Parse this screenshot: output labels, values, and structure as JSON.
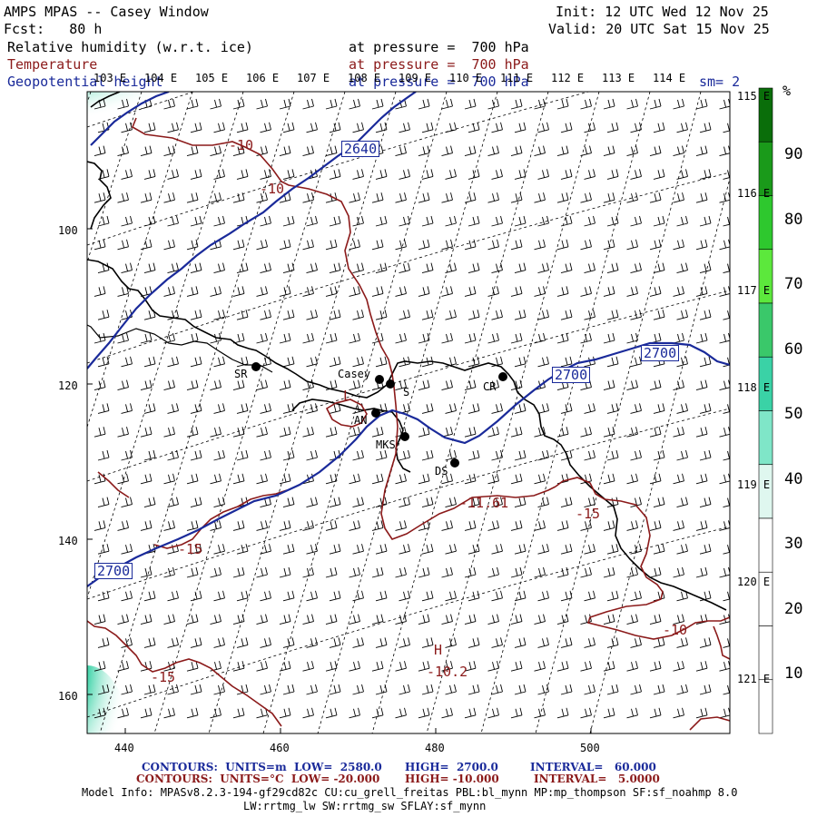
{
  "header": {
    "title": "AMPS MPAS -- Casey Window",
    "fcst": "Fcst:   80 h",
    "init": "Init: 12 UTC Wed 12 Nov 25",
    "valid": "Valid: 20 UTC Sat 15 Nov 25",
    "var1": "Relative humidity (w.r.t. ice)",
    "var1_level": "at pressure =  700 hPa",
    "var2": "Temperature",
    "var2_level": "at pressure =  700 hPa",
    "var3": "Geopotential height",
    "var3_level": "at pressure =  700 hPa",
    "smooth": "sm= 2"
  },
  "top_axis_labels": [
    "103 E",
    "104 E",
    "105 E",
    "106 E",
    "107 E",
    "108 E",
    "109 E",
    "110 E",
    "111 E",
    "112 E",
    "113 E",
    "114 E"
  ],
  "right_axis_labels": [
    "115 E",
    "116 E",
    "117 E",
    "118 E",
    "119 E",
    "120 E",
    "121 E"
  ],
  "bottom_axis_labels": [
    "440",
    "460",
    "480",
    "500"
  ],
  "left_axis_labels": [
    "100",
    "120",
    "140",
    "160"
  ],
  "colorbar": {
    "unit": "%",
    "ticks": [
      "90",
      "80",
      "70",
      "60",
      "50",
      "40",
      "30",
      "20",
      "10"
    ],
    "colors": [
      "#ffffff",
      "#ffffff",
      "#ffffff",
      "#ffffff",
      "#dff7ef",
      "#7fe6c8",
      "#3ad2a6",
      "#3ac86a",
      "#5ce83c",
      "#2ec82e",
      "#1a9a1a",
      "#0a6e0a"
    ]
  },
  "stations": [
    {
      "code": "SR"
    },
    {
      "code": "Casey"
    },
    {
      "code": "S"
    },
    {
      "code": "CR"
    },
    {
      "code": "AN"
    },
    {
      "code": "MKS"
    },
    {
      "code": "DS"
    }
  ],
  "height_contour_labels": [
    "2640",
    "2700",
    "2700",
    "2700"
  ],
  "temp_contour_labels": [
    "-10",
    "-10",
    "-15",
    "-15",
    "-10",
    "-15",
    "-11.61",
    "-10.2"
  ],
  "markers": [
    "L",
    "H"
  ],
  "footer": {
    "line1_left": "CONTOURS:  UNITS=m  LOW=  2580.0",
    "line1_mid": "HIGH=  2700.0",
    "line1_right": "INTERVAL=   60.000",
    "line2_left": "CONTOURS:  UNITS=°C  LOW= -20.000",
    "line2_mid": "HIGH= -10.000",
    "line2_right": "INTERVAL=   5.0000",
    "model_info": "Model Info: MPASv8.2.3-194-gf29cd82c CU:cu_grell_freitas PBL:bl_mynn MP:mp_thompson SF:sf_noahmp 8.0",
    "model_info2": "LW:rrtmg_lw SW:rrtmg_sw SFLAY:sf_mynn"
  },
  "colors": {
    "temperature": "#8b1a1a",
    "height": "#1a2a9a",
    "coast": "#000000"
  }
}
